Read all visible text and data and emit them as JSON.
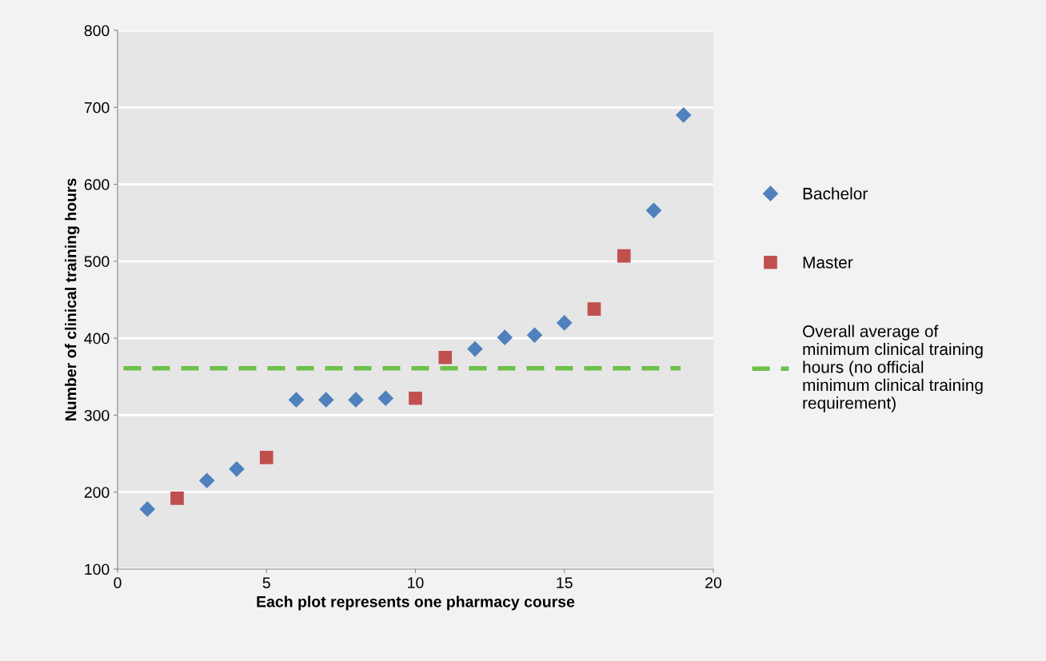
{
  "chart_data": {
    "type": "scatter",
    "xlabel": "Each plot represents one pharmacy course",
    "ylabel": "Number of clinical training hours",
    "xlim": [
      0,
      20
    ],
    "xticks": [
      0,
      5,
      10,
      15,
      20
    ],
    "ylim": [
      100,
      800
    ],
    "yticks": [
      100,
      200,
      300,
      400,
      500,
      600,
      700,
      800
    ],
    "grid": "y",
    "legend": "right",
    "series": [
      {
        "name": "Bachelor",
        "color": "#4f81bd",
        "marker": "diamond",
        "x": [
          1,
          3,
          4,
          6,
          7,
          8,
          9,
          12,
          13,
          14,
          15,
          18,
          19
        ],
        "values": [
          178,
          215,
          230,
          320,
          320,
          320,
          322,
          386,
          401,
          404,
          420,
          566,
          690
        ]
      },
      {
        "name": "Master",
        "color": "#c0504d",
        "marker": "square",
        "x": [
          2,
          5,
          10,
          11,
          16,
          17
        ],
        "values": [
          192,
          245,
          322,
          375,
          438,
          507
        ]
      },
      {
        "name": "Overall average of\nminimum clinical training\nhours (no official\nminimum clinical training\nrequirement)",
        "type": "line",
        "line_style": "dashed",
        "marker": "none",
        "color": "#6cc04a",
        "x": [
          0.2,
          18.9
        ],
        "values": [
          361,
          361
        ]
      }
    ]
  }
}
